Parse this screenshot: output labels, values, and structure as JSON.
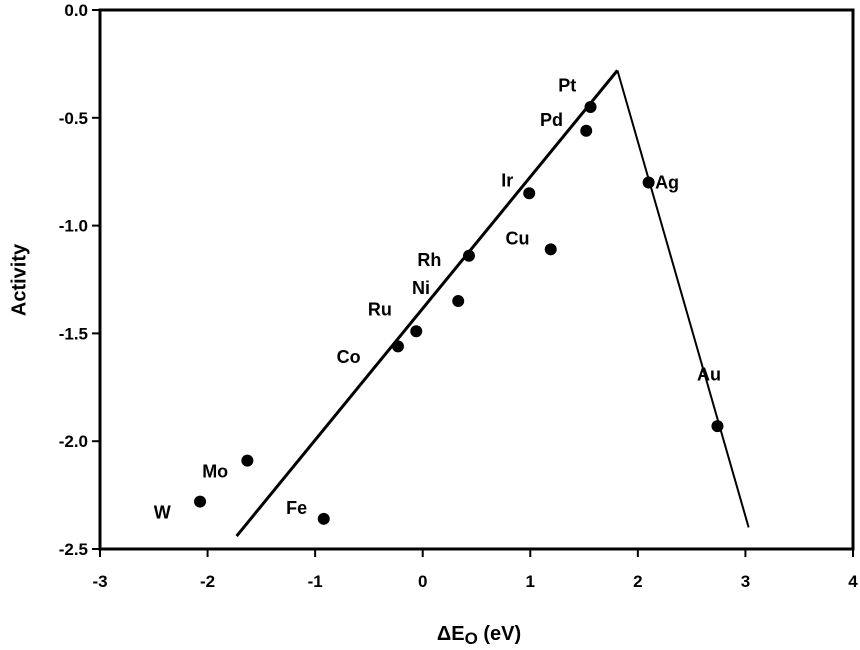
{
  "chart_data": {
    "type": "scatter",
    "title": "",
    "xlabel": "ΔE",
    "xlabel_sub": "O",
    "xlabel_unit": " (eV)",
    "ylabel": "Activity",
    "xlim": [
      -3,
      4
    ],
    "ylim": [
      -2.5,
      0.0
    ],
    "x_ticks": [
      -3,
      -2,
      -1,
      0,
      1,
      2,
      3,
      4
    ],
    "y_ticks": [
      0.0,
      -0.5,
      -1.0,
      -1.5,
      -2.0,
      -2.5
    ],
    "x_tick_labels": [
      "-3",
      "-2",
      "-1",
      "0",
      "1",
      "2",
      "3",
      "4"
    ],
    "y_tick_labels": [
      "0.0",
      "-0.5",
      "-1.0",
      "-1.5",
      "-2.0",
      "-2.5"
    ],
    "grid": false,
    "points": [
      {
        "label": "W",
        "x": -2.07,
        "y": -2.28
      },
      {
        "label": "Mo",
        "x": -1.63,
        "y": -2.09
      },
      {
        "label": "Fe",
        "x": -0.92,
        "y": -2.36
      },
      {
        "label": "Co",
        "x": -0.23,
        "y": -1.56
      },
      {
        "label": "Ru",
        "x": -0.06,
        "y": -1.49
      },
      {
        "label": "Ni",
        "x": 0.33,
        "y": -1.35
      },
      {
        "label": "Rh",
        "x": 0.43,
        "y": -1.14
      },
      {
        "label": "Cu",
        "x": 1.19,
        "y": -1.11
      },
      {
        "label": "Ir",
        "x": 0.99,
        "y": -0.85
      },
      {
        "label": "Pd",
        "x": 1.52,
        "y": -0.56
      },
      {
        "label": "Pt",
        "x": 1.56,
        "y": -0.45
      },
      {
        "label": "Ag",
        "x": 2.1,
        "y": -0.8
      },
      {
        "label": "Au",
        "x": 2.74,
        "y": -1.93
      }
    ],
    "lines": [
      {
        "points": [
          [
            -1.73,
            -2.44
          ],
          [
            1.81,
            -0.28
          ]
        ]
      },
      {
        "points": [
          [
            1.81,
            -0.28
          ],
          [
            3.03,
            -2.4
          ]
        ]
      }
    ]
  }
}
